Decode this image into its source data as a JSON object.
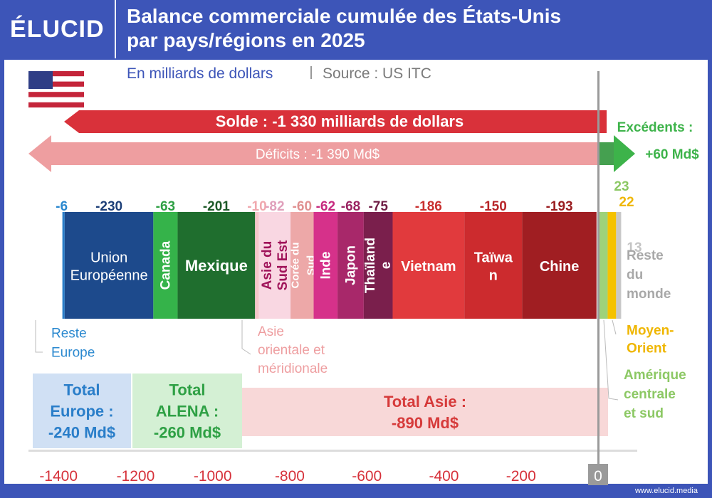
{
  "header": {
    "logo": "ÉLUCID",
    "title_line1": "Balance commerciale cumulée des États-Unis",
    "title_line2": "par pays/régions en 2025",
    "subtitle": "En milliards de dollars",
    "source": "Source : US ITC"
  },
  "footer": {
    "url": "www.elucid.media"
  },
  "colors": {
    "background": "#3d55b8",
    "solde_arrow": "#d9313a",
    "deficit_arrow": "#ee9ea0",
    "surplus_arrow": "#3db34a"
  },
  "chart_data": {
    "type": "bar",
    "orientation": "horizontal-stacked",
    "x_ticks": [
      -1400,
      -1200,
      -1000,
      -800,
      -600,
      -400,
      -200,
      0
    ],
    "x_tick_labels": [
      "-1400",
      "-1200",
      "-1000",
      "-800",
      "-600",
      "-400",
      "-200",
      "0"
    ],
    "xlim": [
      -1400,
      50
    ],
    "balance": {
      "label": "Solde : -1 330 milliards de dollars",
      "value": -1330
    },
    "deficits": {
      "label": "Déficits : -1 390 Md$",
      "value": -1390
    },
    "surplus": {
      "label": "Excédents :",
      "value_label": "+60 Md$",
      "value": 60
    },
    "segments": [
      {
        "name": "Reste Europe",
        "label": "",
        "value": -6,
        "value_label": "-6",
        "color": "#2a7ec9",
        "label_color": "#2a88cf"
      },
      {
        "name": "Union Européenne",
        "label": "Union\nEuropéenne",
        "value": -230,
        "value_label": "-230",
        "color": "#1d4a8c",
        "label_color": "#1d3f78"
      },
      {
        "name": "Canada",
        "label": "Canada",
        "value": -63,
        "value_label": "-63",
        "color": "#35b34a",
        "label_color": "#2ea044"
      },
      {
        "name": "Mexique",
        "label": "Mexique",
        "value": -201,
        "value_label": "-201",
        "color": "#1f6e2e",
        "label_color": "#1d5a28"
      },
      {
        "name": "Asie orientale et méridionale",
        "label": "",
        "value": -10,
        "value_label": "-10",
        "color": "#f5c6c9",
        "label_color": "#f0a8ae"
      },
      {
        "name": "Asie du Sud Est",
        "label": "Asie du\nSud Est",
        "value": -82,
        "value_label": "-82",
        "color": "#f9d7e2",
        "label_color": "#e0a0bb"
      },
      {
        "name": "Corée du Sud",
        "label": "Corée du\nSud",
        "value": -60,
        "value_label": "-60",
        "color": "#eda8a8",
        "label_color": "#e09090"
      },
      {
        "name": "Inde",
        "label": "Inde",
        "value": -62,
        "value_label": "-62",
        "color": "#d6318a",
        "label_color": "#c62a7f"
      },
      {
        "name": "Japon",
        "label": "Japon",
        "value": -68,
        "value_label": "-68",
        "color": "#a8286a",
        "label_color": "#9a2462"
      },
      {
        "name": "Thaïlande",
        "label": "Thaïland\ne",
        "value": -75,
        "value_label": "-75",
        "color": "#7a1f4c",
        "label_color": "#6e1c44"
      },
      {
        "name": "Vietnam",
        "label": "Vietnam",
        "value": -186,
        "value_label": "-186",
        "color": "#e13a3d",
        "label_color": "#c9302f"
      },
      {
        "name": "Taïwan",
        "label": "Taïwa\nn",
        "value": -150,
        "value_label": "-150",
        "color": "#cc2b2e",
        "label_color": "#b82528"
      },
      {
        "name": "Chine",
        "label": "Chine",
        "value": -193,
        "value_label": "-193",
        "color": "#a01e22",
        "label_color": "#9a1d20"
      }
    ],
    "positive_segments": [
      {
        "name": "Amérique centrale et sud",
        "value": 23,
        "value_label": "23",
        "color": "#9ed27a",
        "label_color": "#8cc864"
      },
      {
        "name": "Moyen-Orient",
        "value": 22,
        "value_label": "22",
        "color": "#f5c200",
        "label_color": "#efb600"
      },
      {
        "name": "Reste du monde",
        "value": 13,
        "value_label": "13",
        "color": "#c8c8c8",
        "label_color": "#c4c4c4"
      }
    ],
    "callouts": {
      "reste_europe": "Reste\nEurope",
      "asie_orientale": "Asie\norientale et\nméridionale",
      "moyen_orient": "Moyen-\nOrient",
      "amerique": "Amérique\ncentrale\net sud",
      "reste_monde": "Reste\ndu\nmonde"
    },
    "totals": [
      {
        "name": "Total Europe",
        "label": "Total\nEurope :\n-240 Md$",
        "value": -240,
        "color": "#d0e0f4",
        "text_color": "#2a7ec9"
      },
      {
        "name": "Total ALENA",
        "label": "Total\nALENA :\n-260 Md$",
        "value": -260,
        "color": "#d4f0d4",
        "text_color": "#2ea044"
      },
      {
        "name": "Total Asie",
        "label": "Total Asie :\n-890 Md$",
        "value": -890,
        "color": "#f8d8d8",
        "text_color": "#d63a3a"
      }
    ]
  }
}
